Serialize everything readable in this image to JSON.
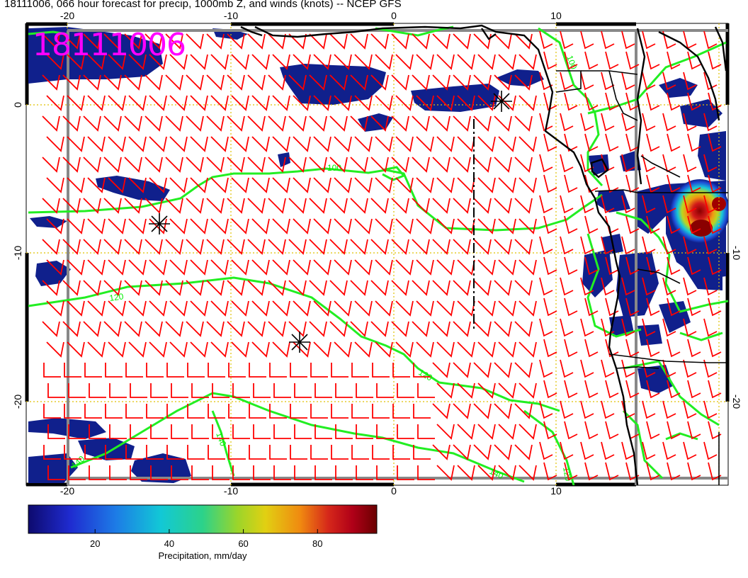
{
  "title": "18111006, 066 hour forecast for precip, 1000mb Z, and winds (knots) -- NCEP GFS",
  "stamp": "18111006",
  "map": {
    "lon_top_labels": [
      "-20",
      "-10",
      "0",
      "10"
    ],
    "lon_bottom_labels": [
      "-20",
      "-10",
      "0",
      "10"
    ],
    "lat_left_labels": [
      "0",
      "-10",
      "-20"
    ],
    "lat_right_labels": [
      "-10",
      "-20"
    ],
    "contour_labels": [
      "100",
      "120",
      "120",
      "140",
      "140",
      "140",
      "100",
      "120"
    ],
    "colors": {
      "contour": "#00ee00",
      "barb": "#ff0000",
      "grid": "#e8c800",
      "boundary": "#000000",
      "precip_low": "#10208c"
    }
  },
  "colorbar": {
    "ticks": [
      "20",
      "40",
      "60",
      "80"
    ],
    "label": "Precipitation, mm/day",
    "tick_values": [
      20,
      40,
      60,
      80
    ],
    "range": [
      2,
      96
    ]
  }
}
